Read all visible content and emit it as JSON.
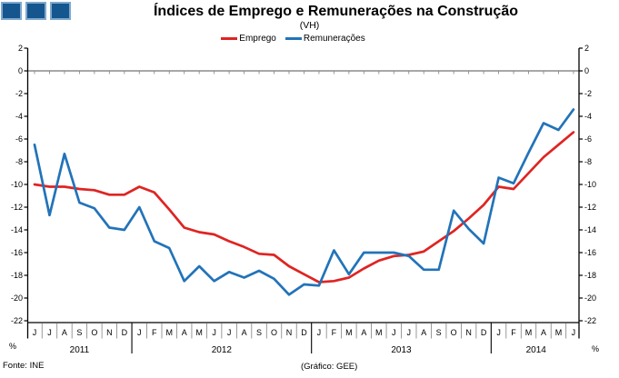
{
  "logo": {
    "squares": 3
  },
  "header": {
    "title": "Índices de Emprego e Remunerações na Construção",
    "subtitle": "(VH)"
  },
  "footer": {
    "source": "Fonte: INE",
    "credit": "(Gráfico: GEE)"
  },
  "colors": {
    "emprego": "#df2422",
    "remuneracoes": "#2273b9",
    "zero_line": "#8c8c8c",
    "axis": "#000000",
    "separator": "#808080",
    "logo_fill": "#15568e",
    "logo_border": "#7ea9cd"
  },
  "chart_data": {
    "type": "line",
    "title": "Índices de Emprego e Remunerações na Construção",
    "subtitle": "(VH)",
    "unit_label": "%",
    "ylim": [
      -22,
      2
    ],
    "ytick_step": 2,
    "zero_line": true,
    "grid": false,
    "legend_position": "top",
    "categories": [
      "J",
      "J",
      "A",
      "S",
      "O",
      "N",
      "D",
      "J",
      "F",
      "M",
      "A",
      "M",
      "J",
      "J",
      "A",
      "S",
      "O",
      "N",
      "D",
      "J",
      "F",
      "M",
      "A",
      "M",
      "J",
      "J",
      "A",
      "S",
      "O",
      "N",
      "D",
      "J",
      "F",
      "M",
      "A",
      "M",
      "J"
    ],
    "year_groups": [
      {
        "label": "2011",
        "months": 7
      },
      {
        "label": "2012",
        "months": 12
      },
      {
        "label": "2013",
        "months": 12
      },
      {
        "label": "2014",
        "months": 6
      }
    ],
    "series": [
      {
        "name": "Emprego",
        "color": "#df2422",
        "values": [
          -10.0,
          -10.2,
          -10.2,
          -10.4,
          -10.5,
          -10.9,
          -10.9,
          -10.2,
          -10.7,
          -12.2,
          -13.8,
          -14.2,
          -14.4,
          -15.0,
          -15.5,
          -16.1,
          -16.2,
          -17.2,
          -17.9,
          -18.6,
          -18.5,
          -18.2,
          -17.4,
          -16.7,
          -16.3,
          -16.2,
          -15.9,
          -15.0,
          -14.1,
          -13.0,
          -11.8,
          -10.2,
          -10.4,
          -9.0,
          -7.6,
          -6.5,
          -5.4
        ]
      },
      {
        "name": "Remunerações",
        "color": "#2273b9",
        "values": [
          -6.5,
          -12.7,
          -7.3,
          -11.6,
          -12.1,
          -13.8,
          -14.0,
          -12.0,
          -15.0,
          -15.6,
          -18.5,
          -17.2,
          -18.5,
          -17.7,
          -18.2,
          -17.6,
          -18.3,
          -19.7,
          -18.8,
          -18.9,
          -15.8,
          -17.9,
          -16.0,
          -16.0,
          -16.0,
          -16.3,
          -17.5,
          -17.5,
          -12.3,
          -13.9,
          -15.2,
          -9.4,
          -9.9,
          -7.2,
          -4.6,
          -5.2,
          -3.4
        ]
      }
    ]
  }
}
